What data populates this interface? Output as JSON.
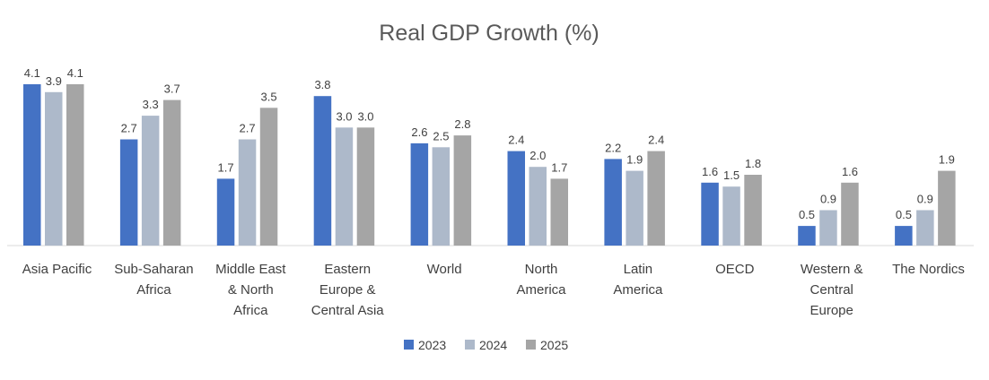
{
  "chart_data": {
    "type": "bar",
    "title": "Real GDP Growth (%)",
    "xlabel": "",
    "ylabel": "",
    "ylim": [
      0,
      4.4
    ],
    "grid": false,
    "legend_position": "bottom",
    "categories": [
      [
        "Asia Pacific"
      ],
      [
        "Sub-Saharan",
        "Africa"
      ],
      [
        "Middle East",
        "& North",
        "Africa"
      ],
      [
        "Eastern",
        "Europe &",
        "Central Asia"
      ],
      [
        "World"
      ],
      [
        "North",
        "America"
      ],
      [
        "Latin",
        "America"
      ],
      [
        "OECD"
      ],
      [
        "Western &",
        "Central",
        "Europe"
      ],
      [
        "The Nordics"
      ]
    ],
    "series": [
      {
        "name": "2023",
        "color": "#4472C4",
        "values": [
          4.1,
          2.7,
          1.7,
          3.8,
          2.6,
          2.4,
          2.2,
          1.6,
          0.5,
          0.5
        ]
      },
      {
        "name": "2024",
        "color": "#ADB9CA",
        "values": [
          3.9,
          3.3,
          2.7,
          3.0,
          2.5,
          2.0,
          1.9,
          1.5,
          0.9,
          0.9
        ]
      },
      {
        "name": "2025",
        "color": "#A5A5A5",
        "values": [
          4.1,
          3.7,
          3.5,
          3.0,
          2.8,
          1.7,
          2.4,
          1.8,
          1.6,
          1.9
        ]
      }
    ]
  }
}
